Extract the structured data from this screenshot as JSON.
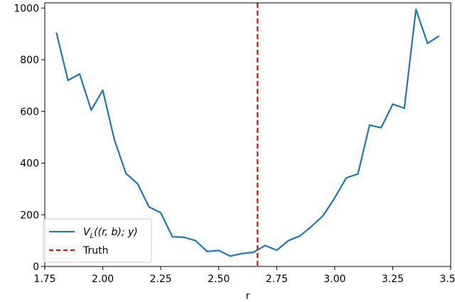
{
  "chart_data": {
    "type": "line",
    "xlabel": "r",
    "ylabel": "",
    "title": "",
    "xlim": [
      1.75,
      3.5
    ],
    "ylim": [
      0,
      1020
    ],
    "xticks": [
      "1.75",
      "2.00",
      "2.25",
      "2.50",
      "2.75",
      "3.00",
      "3.25",
      "3.50"
    ],
    "yticks": [
      "0",
      "200",
      "400",
      "600",
      "800",
      "1000"
    ],
    "grid": false,
    "legend_position": "lower-left",
    "series": [
      {
        "name": "V_L((r, b); y)",
        "color": "#1f77b4",
        "style": "solid",
        "x": [
          1.8,
          1.85,
          1.9,
          1.95,
          2.0,
          2.05,
          2.1,
          2.15,
          2.2,
          2.25,
          2.3,
          2.35,
          2.4,
          2.45,
          2.5,
          2.55,
          2.6,
          2.65,
          2.7,
          2.75,
          2.8,
          2.85,
          2.9,
          2.95,
          3.0,
          3.05,
          3.1,
          3.15,
          3.2,
          3.25,
          3.3,
          3.35,
          3.4,
          3.45
        ],
        "y": [
          905,
          720,
          745,
          605,
          682,
          490,
          360,
          320,
          230,
          208,
          115,
          113,
          100,
          58,
          62,
          40,
          50,
          55,
          81,
          63,
          100,
          118,
          155,
          197,
          266,
          343,
          358,
          547,
          537,
          628,
          612,
          995,
          863,
          892
        ]
      }
    ],
    "vlines": [
      {
        "name": "Truth",
        "x": 2.667,
        "color": "#ff0000",
        "style": "dashed"
      }
    ]
  },
  "legend": {
    "series_label_main": "V",
    "series_label_sub": "L",
    "series_label_rest": "((r, b); y)",
    "truth_label": "Truth"
  }
}
